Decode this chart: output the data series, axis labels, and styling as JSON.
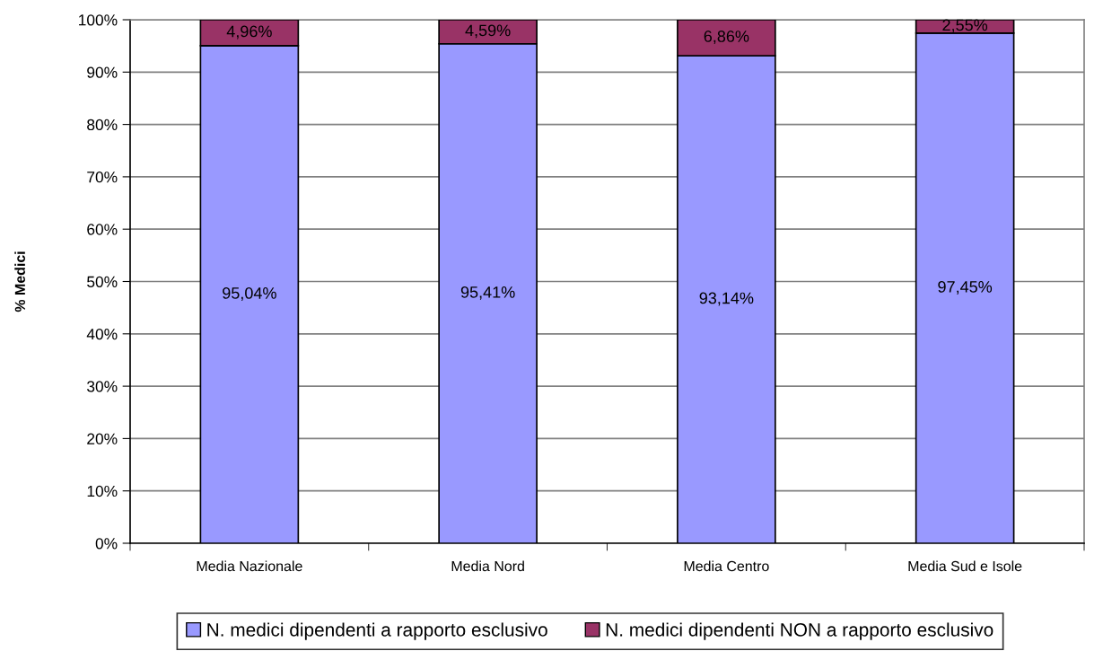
{
  "chart_data": {
    "type": "bar",
    "stacked": true,
    "categories": [
      "Media Nazionale",
      "Media Nord",
      "Media Centro",
      "Media Sud e Isole"
    ],
    "series": [
      {
        "name": "N. medici dipendenti a rapporto esclusivo",
        "color": "#9999ff",
        "values": [
          95.04,
          95.41,
          93.14,
          97.45
        ],
        "value_labels": [
          "95,04%",
          "95,41%",
          "93,14%",
          "97,45%"
        ]
      },
      {
        "name": "N. medici dipendenti NON a rapporto esclusivo",
        "color": "#993366",
        "values": [
          4.96,
          4.59,
          6.86,
          2.55
        ],
        "value_labels": [
          "4,96%",
          "4,59%",
          "6,86%",
          "2,55%"
        ]
      }
    ],
    "ylabel": "% Medici",
    "ylim": [
      0,
      100
    ],
    "yticks": [
      {
        "value": 0,
        "label": "0%"
      },
      {
        "value": 10,
        "label": "10%"
      },
      {
        "value": 20,
        "label": "20%"
      },
      {
        "value": 30,
        "label": "30%"
      },
      {
        "value": 40,
        "label": "40%"
      },
      {
        "value": 50,
        "label": "50%"
      },
      {
        "value": 60,
        "label": "60%"
      },
      {
        "value": 70,
        "label": "70%"
      },
      {
        "value": 80,
        "label": "80%"
      },
      {
        "value": 90,
        "label": "90%"
      },
      {
        "value": 100,
        "label": "100%"
      }
    ],
    "grid": "y",
    "legend": "bottom"
  }
}
